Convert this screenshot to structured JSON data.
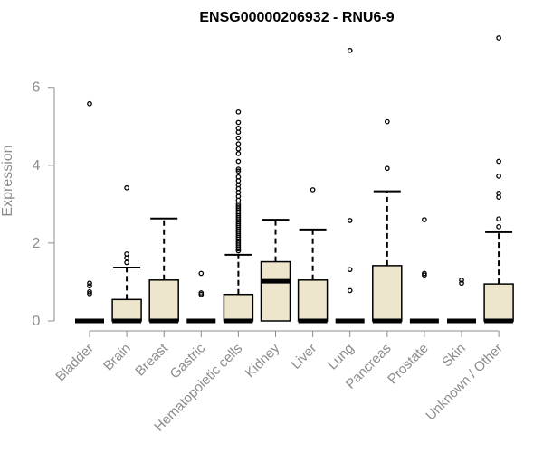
{
  "chart_data": {
    "type": "box",
    "title": "ENSG00000206932 - RNU6-9",
    "xlabel": "",
    "ylabel": "Expression",
    "ylim": [
      -0.3,
      7.4
    ],
    "yticks": [
      0,
      2,
      4,
      6
    ],
    "colors": {
      "box_fill": "#ede6cd",
      "stroke": "#000000",
      "axis": "#8c8c8c"
    },
    "categories": [
      "Bladder",
      "Brain",
      "Breast",
      "Gastric",
      "Hematopoietic cells",
      "Kidney",
      "Liver",
      "Lung",
      "Pancreas",
      "Prostate",
      "Skin",
      "Unknown / Other"
    ],
    "boxes": [
      {
        "q1": 0,
        "median": 0,
        "q3": 0,
        "whisker_low": 0,
        "whisker_high": 0,
        "outliers": [
          5.58,
          0.97,
          0.9,
          0.75,
          0.7
        ]
      },
      {
        "q1": 0,
        "median": 0,
        "q3": 0.55,
        "whisker_low": 0,
        "whisker_high": 1.37,
        "outliers": [
          3.42,
          1.72,
          1.62,
          1.5
        ]
      },
      {
        "q1": 0,
        "median": 0,
        "q3": 1.05,
        "whisker_low": 0,
        "whisker_high": 2.63,
        "outliers": []
      },
      {
        "q1": 0,
        "median": 0,
        "q3": 0,
        "whisker_low": 0,
        "whisker_high": 0,
        "outliers": [
          1.22,
          0.72,
          0.68
        ]
      },
      {
        "q1": 0,
        "median": 0,
        "q3": 0.68,
        "whisker_low": 0,
        "whisker_high": 1.7,
        "outliers": [
          5.37,
          5.1,
          4.95,
          4.85,
          4.7,
          4.55,
          4.42,
          4.3,
          4.1,
          3.9,
          3.85,
          3.7,
          3.6,
          3.5,
          3.4,
          3.3,
          3.2,
          3.1,
          3.0,
          2.95,
          2.9,
          2.85,
          2.8,
          2.75,
          2.7,
          2.65,
          2.6,
          2.55,
          2.5,
          2.45,
          2.4,
          2.35,
          2.3,
          2.25,
          2.2,
          2.15,
          2.1,
          2.05,
          2.0,
          1.95,
          1.9,
          1.85,
          1.8
        ]
      },
      {
        "q1": 0,
        "median": 1.02,
        "q3": 1.52,
        "whisker_low": 0,
        "whisker_high": 2.6,
        "outliers": []
      },
      {
        "q1": 0,
        "median": 0,
        "q3": 1.05,
        "whisker_low": 0,
        "whisker_high": 2.35,
        "outliers": [
          3.37
        ]
      },
      {
        "q1": 0,
        "median": 0,
        "q3": 0,
        "whisker_low": 0,
        "whisker_high": 0,
        "outliers": [
          6.95,
          2.58,
          1.32,
          0.78
        ]
      },
      {
        "q1": 0,
        "median": 0,
        "q3": 1.42,
        "whisker_low": 0,
        "whisker_high": 3.33,
        "outliers": [
          5.12,
          3.92
        ]
      },
      {
        "q1": 0,
        "median": 0,
        "q3": 0,
        "whisker_low": 0,
        "whisker_high": 0,
        "outliers": [
          2.6,
          1.22,
          1.18
        ]
      },
      {
        "q1": 0,
        "median": 0,
        "q3": 0,
        "whisker_low": 0,
        "whisker_high": 0,
        "outliers": [
          1.05,
          0.97
        ]
      },
      {
        "q1": 0,
        "median": 0,
        "q3": 0.95,
        "whisker_low": 0,
        "whisker_high": 2.28,
        "outliers": [
          7.27,
          4.1,
          3.72,
          3.28,
          3.18,
          2.62,
          2.42
        ]
      }
    ]
  }
}
